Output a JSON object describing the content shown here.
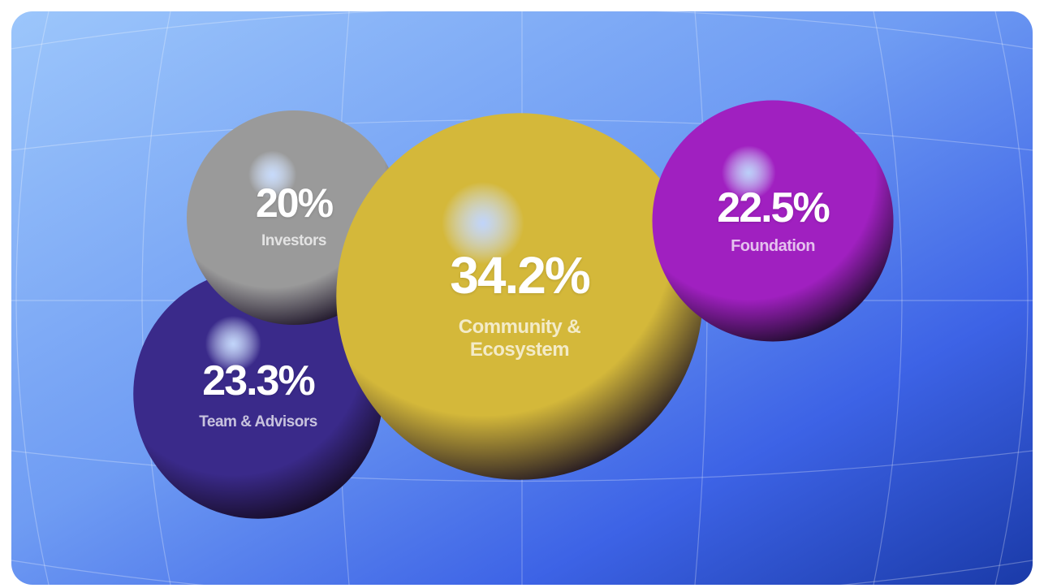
{
  "chart_data": {
    "type": "bubble",
    "categories": [
      "Investors",
      "Team & Advisors",
      "Community & Ecosystem",
      "Foundation"
    ],
    "values": [
      20,
      23.3,
      34.2,
      22.5
    ],
    "value_labels": [
      "20%",
      "23.3%",
      "34.2%",
      "22.5%"
    ],
    "colors": [
      "#9a9a9a",
      "#3a2a8a",
      "#d4b83a",
      "#a020c0"
    ]
  }
}
